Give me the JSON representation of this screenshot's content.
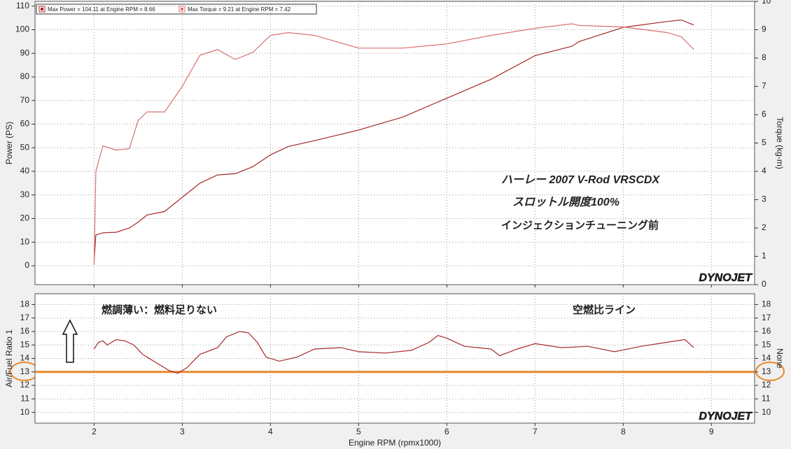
{
  "chart_data": [
    {
      "type": "line",
      "ylabel": "Power (PS)",
      "y2label": "Torque (kg-m)",
      "logo": "DYNOJET",
      "annotations": [
        "ハーレー 2007 V-Rod VRSCDX",
        "スロットル開度100%",
        "インジェクションチューニング前"
      ],
      "annotation_colors": [
        "#111111",
        "#111111",
        "#d02020"
      ],
      "x": [
        2.0,
        2.02,
        2.1,
        2.25,
        2.4,
        2.5,
        2.6,
        2.8,
        3.0,
        3.2,
        3.4,
        3.6,
        3.8,
        4.0,
        4.2,
        4.5,
        5.0,
        5.5,
        6.0,
        6.5,
        7.0,
        7.42,
        7.5,
        8.0,
        8.5,
        8.66,
        8.8
      ],
      "series": [
        {
          "name": "Max Power = 104.11 at Engine RPM = 8.66",
          "color": "#a52a2a",
          "values": [
            2,
            13,
            14,
            14.2,
            16,
            18.5,
            21.5,
            23,
            29,
            35,
            38.5,
            39,
            42,
            47,
            50.5,
            53,
            57.5,
            63,
            71,
            79,
            89,
            93,
            95,
            101,
            103.5,
            104.11,
            102
          ]
        },
        {
          "name": "Max Torque = 9.21 at Engine RPM = 7.42",
          "color": "#d87070",
          "axis": "y2",
          "values": [
            0.7,
            4.0,
            4.9,
            4.75,
            4.8,
            5.8,
            6.1,
            6.1,
            7.0,
            8.1,
            8.3,
            7.95,
            8.2,
            8.8,
            8.9,
            8.8,
            8.35,
            8.35,
            8.5,
            8.8,
            9.05,
            9.21,
            9.15,
            9.1,
            8.9,
            8.75,
            8.3
          ]
        }
      ],
      "xlim": [
        1.33,
        9.49
      ],
      "xticks": [
        2,
        3,
        4,
        5,
        6,
        7,
        8,
        9
      ],
      "ylim": [
        -8,
        112
      ],
      "yticks": [
        0,
        10,
        20,
        30,
        40,
        50,
        60,
        70,
        80,
        90,
        100,
        110
      ],
      "y2lim": [
        0,
        10
      ],
      "y2ticks": [
        0,
        1,
        2,
        3,
        4,
        5,
        6,
        7,
        8,
        9,
        10
      ],
      "grid": true
    },
    {
      "type": "line",
      "ylabel": "Air/Fuel Ratio 1",
      "y2label": "None",
      "xlabel": "Engine RPM (rpmx1000)",
      "logo": "DYNOJET",
      "annotations": [
        "燃調薄い：燃料足りない",
        "空燃比ライン"
      ],
      "annotation_colors": [
        "#111111",
        "#111111"
      ],
      "x": [
        2.0,
        2.05,
        2.1,
        2.15,
        2.25,
        2.35,
        2.45,
        2.55,
        2.7,
        2.85,
        2.95,
        3.05,
        3.2,
        3.4,
        3.5,
        3.65,
        3.75,
        3.85,
        3.95,
        4.1,
        4.3,
        4.5,
        4.8,
        5.0,
        5.3,
        5.6,
        5.8,
        5.9,
        6.0,
        6.2,
        6.5,
        6.6,
        6.8,
        7.0,
        7.3,
        7.6,
        7.9,
        8.2,
        8.5,
        8.7,
        8.8
      ],
      "series": [
        {
          "color": "#a52a2a",
          "values": [
            14.7,
            15.2,
            15.3,
            15.0,
            15.4,
            15.3,
            15.0,
            14.3,
            13.7,
            13.1,
            12.9,
            13.3,
            14.3,
            14.8,
            15.6,
            16.0,
            15.9,
            15.2,
            14.1,
            13.8,
            14.1,
            14.7,
            14.8,
            14.5,
            14.4,
            14.6,
            15.2,
            15.7,
            15.5,
            14.9,
            14.7,
            14.2,
            14.7,
            15.1,
            14.8,
            14.9,
            14.5,
            14.9,
            15.2,
            15.4,
            14.8
          ]
        }
      ],
      "hline": {
        "value": 13,
        "color": "#e8872a"
      },
      "xlim": [
        1.33,
        9.49
      ],
      "xticks": [
        2,
        3,
        4,
        5,
        6,
        7,
        8,
        9
      ],
      "ylim": [
        9.2,
        18.8
      ],
      "yticks": [
        10,
        11,
        12,
        13,
        14,
        15,
        16,
        17,
        18
      ],
      "y2lim": [
        9.2,
        18.8
      ],
      "y2ticks": [
        10,
        11,
        12,
        13,
        14,
        15,
        16,
        17,
        18
      ],
      "grid": true
    }
  ]
}
